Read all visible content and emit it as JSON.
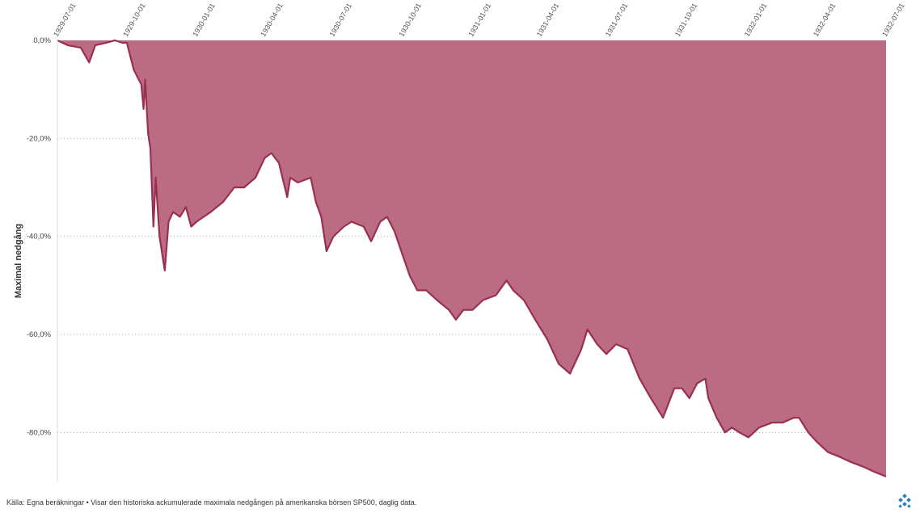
{
  "chart_data": {
    "type": "area",
    "title": "",
    "xlabel": "",
    "ylabel": "Maximal nedgång",
    "x_tick_labels": [
      "1929-07-01",
      "1929-10-01",
      "1930-01-01",
      "1930-04-01",
      "1930-07-01",
      "1930-10-01",
      "1931-01-01",
      "1931-04-01",
      "1931-07-01",
      "1931-10-01",
      "1932-01-01",
      "1932-04-01",
      "1932-07-01"
    ],
    "y_tick_labels": [
      "0,0%",
      "-20,0%",
      "-40,0%",
      "-60,0%",
      "-80,0%"
    ],
    "y_tick_values": [
      0,
      -20,
      -40,
      -60,
      -80
    ],
    "ylim": [
      -90,
      0
    ],
    "xlim": [
      "1929-07-01",
      "1932-07-01"
    ],
    "grid": true,
    "legend": "none",
    "colors": {
      "fill": "#bb6b82",
      "line": "#9b2f52",
      "grid": "#9a9a9a"
    },
    "series": [
      {
        "x": [
          "1929-07-01",
          "1929-07-15",
          "1929-08-01",
          "1929-08-12",
          "1929-08-20",
          "1929-09-03",
          "1929-09-15",
          "1929-09-25",
          "1929-10-01",
          "1929-10-05",
          "1929-10-10",
          "1929-10-20",
          "1929-10-23",
          "1929-10-25",
          "1929-10-29",
          "1929-11-01",
          "1929-11-05",
          "1929-11-08",
          "1929-11-13",
          "1929-11-20",
          "1929-11-25",
          "1929-12-01",
          "1929-12-10",
          "1929-12-18",
          "1929-12-25",
          "1930-01-01",
          "1930-01-20",
          "1930-02-05",
          "1930-02-20",
          "1930-03-05",
          "1930-03-20",
          "1930-04-01",
          "1930-04-10",
          "1930-04-20",
          "1930-05-01",
          "1930-05-05",
          "1930-05-15",
          "1930-06-01",
          "1930-06-08",
          "1930-06-15",
          "1930-06-22",
          "1930-07-01",
          "1930-07-15",
          "1930-07-25",
          "1930-08-10",
          "1930-08-20",
          "1930-09-01",
          "1930-09-10",
          "1930-09-20",
          "1930-10-01",
          "1930-10-10",
          "1930-10-20",
          "1930-11-01",
          "1930-11-15",
          "1930-12-01",
          "1930-12-10",
          "1930-12-20",
          "1931-01-01",
          "1931-01-15",
          "1931-02-01",
          "1931-02-15",
          "1931-02-24",
          "1931-03-10",
          "1931-03-25",
          "1931-04-10",
          "1931-04-25",
          "1931-05-10",
          "1931-05-25",
          "1931-06-02",
          "1931-06-15",
          "1931-06-27",
          "1931-07-10",
          "1931-07-25",
          "1931-08-10",
          "1931-08-25",
          "1931-09-10",
          "1931-09-25",
          "1931-10-05",
          "1931-10-15",
          "1931-10-25",
          "1931-11-05",
          "1931-11-09",
          "1931-11-20",
          "1931-12-01",
          "1931-12-10",
          "1931-12-20",
          "1932-01-01",
          "1932-01-15",
          "1932-02-01",
          "1932-02-15",
          "1932-03-01",
          "1932-03-08",
          "1932-03-20",
          "1932-04-01",
          "1932-04-15",
          "1932-05-01",
          "1932-05-15",
          "1932-06-01",
          "1932-06-15",
          "1932-07-01"
        ],
        "values": [
          0,
          -1,
          -1.5,
          -4.5,
          -1,
          -0.5,
          0,
          -0.5,
          -0.5,
          -3,
          -6,
          -9,
          -14,
          -8,
          -19,
          -22,
          -38,
          -28,
          -40,
          -47,
          -37,
          -35,
          -36,
          -34,
          -38,
          -37,
          -35,
          -33,
          -30,
          -30,
          -28,
          -24,
          -23,
          -25,
          -32,
          -28,
          -29,
          -28,
          -33,
          -36,
          -43,
          -40,
          -38,
          -37,
          -38,
          -41,
          -37,
          -36,
          -39,
          -44,
          -48,
          -51,
          -51,
          -53,
          -55,
          -57,
          -55,
          -55,
          -53,
          -52,
          -49,
          -51,
          -53,
          -57,
          -61,
          -66,
          -68,
          -63,
          -59,
          -62,
          -64,
          -62,
          -63,
          -69,
          -73,
          -77,
          -71,
          -71,
          -73,
          -70,
          -69,
          -73,
          -77,
          -80,
          -79,
          -80,
          -81,
          -79,
          -78,
          -78,
          -77,
          -77,
          -80,
          -82,
          -84,
          -85,
          -86,
          -87,
          -88,
          -89
        ]
      }
    ]
  },
  "footer": {
    "text": "Källa: Egna beräkningar • Visar den historiska ackumulerade maximala nedgången på amerikanska börsen SP500, daglig data."
  }
}
